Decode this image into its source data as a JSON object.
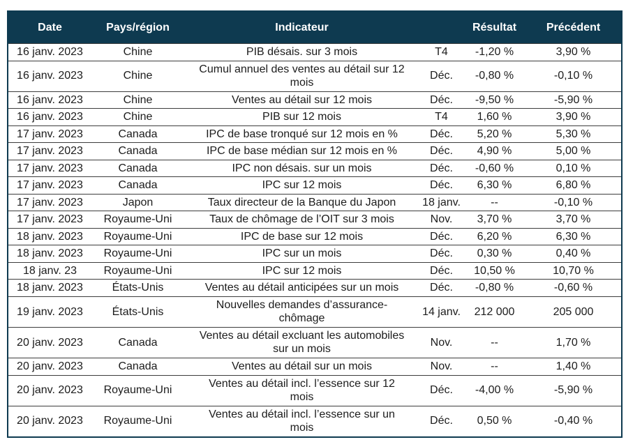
{
  "table": {
    "headers": [
      "Date",
      "Pays/région",
      "Indicateur",
      "",
      "Résultat",
      "Précédent"
    ],
    "column_names": [
      "date",
      "country",
      "indicator",
      "period",
      "result",
      "previous"
    ],
    "rows": [
      [
        "16 janv. 2023",
        "Chine",
        "PIB désais. sur 3 mois",
        "T4",
        "-1,20 %",
        "3,90 %"
      ],
      [
        "16 janv. 2023",
        "Chine",
        "Cumul annuel des ventes au détail sur 12\nmois",
        "Déc.",
        "-0,80 %",
        "-0,10 %"
      ],
      [
        "16 janv. 2023",
        "Chine",
        "Ventes au détail sur 12 mois",
        "Déc.",
        "-9,50 %",
        "-5,90 %"
      ],
      [
        "16 janv. 2023",
        "Chine",
        "PIB sur 12 mois",
        "T4",
        "1,60 %",
        "3,90 %"
      ],
      [
        "17 janv. 2023",
        "Canada",
        "IPC de base tronqué sur 12 mois en %",
        "Déc.",
        "5,20 %",
        "5,30 %"
      ],
      [
        "17 janv. 2023",
        "Canada",
        "IPC de base médian sur 12 mois en %",
        "Déc.",
        "4,90 %",
        "5,00 %"
      ],
      [
        "17 janv. 2023",
        "Canada",
        "IPC non désais. sur un mois",
        "Déc.",
        "-0,60 %",
        "0,10 %"
      ],
      [
        "17 janv. 2023",
        "Canada",
        "IPC sur 12 mois",
        "Déc.",
        "6,30 %",
        "6,80 %"
      ],
      [
        "17 janv. 2023",
        "Japon",
        "Taux directeur de la Banque du Japon",
        "18 janv.",
        "--",
        "-0,10 %"
      ],
      [
        "17 janv. 2023",
        "Royaume-Uni",
        "Taux de chômage de l’OIT sur 3 mois",
        "Nov.",
        "3,70 %",
        "3,70 %"
      ],
      [
        "18 janv. 2023",
        "Royaume-Uni",
        "IPC de base sur 12 mois",
        "Déc.",
        "6,20 %",
        "6,30 %"
      ],
      [
        "18 janv. 2023",
        "Royaume-Uni",
        "IPC sur un mois",
        "Déc.",
        "0,30 %",
        "0,40 %"
      ],
      [
        "18 janv. 23",
        "Royaume-Uni",
        "IPC sur 12 mois",
        "Déc.",
        "10,50 %",
        "10,70 %"
      ],
      [
        "18 janv. 2023",
        "États-Unis",
        "Ventes au détail anticipées sur un mois",
        "Déc.",
        "-0,80 %",
        "-0,60 %"
      ],
      [
        "19 janv. 2023",
        "États-Unis",
        "Nouvelles demandes d’assurance-\nchômage",
        "14 janv.",
        "212 000",
        "205 000"
      ],
      [
        "20 janv. 2023",
        "Canada",
        "Ventes au détail excluant les automobiles\nsur un mois",
        "Nov.",
        "--",
        "1,70 %"
      ],
      [
        "20 janv. 2023",
        "Canada",
        "Ventes au détail sur un mois",
        "Nov.",
        "--",
        "1,40 %"
      ],
      [
        "20 janv. 2023",
        "Royaume-Uni",
        "Ventes au détail incl. l’essence sur 12\nmois",
        "Déc.",
        "-4,00 %",
        "-5,90 %"
      ],
      [
        "20 janv. 2023",
        "Royaume-Uni",
        "Ventes au détail incl. l’essence sur un\nmois",
        "Déc.",
        "0,50 %",
        "-0,40 %"
      ]
    ]
  },
  "colors": {
    "header_bg": "#0e3a50",
    "header_text": "#ffffff",
    "outer_border": "#0e3a50",
    "row_divider": "#3c3c3c",
    "body_text": "#1c1c1c",
    "row_bg": "#ffffff"
  }
}
